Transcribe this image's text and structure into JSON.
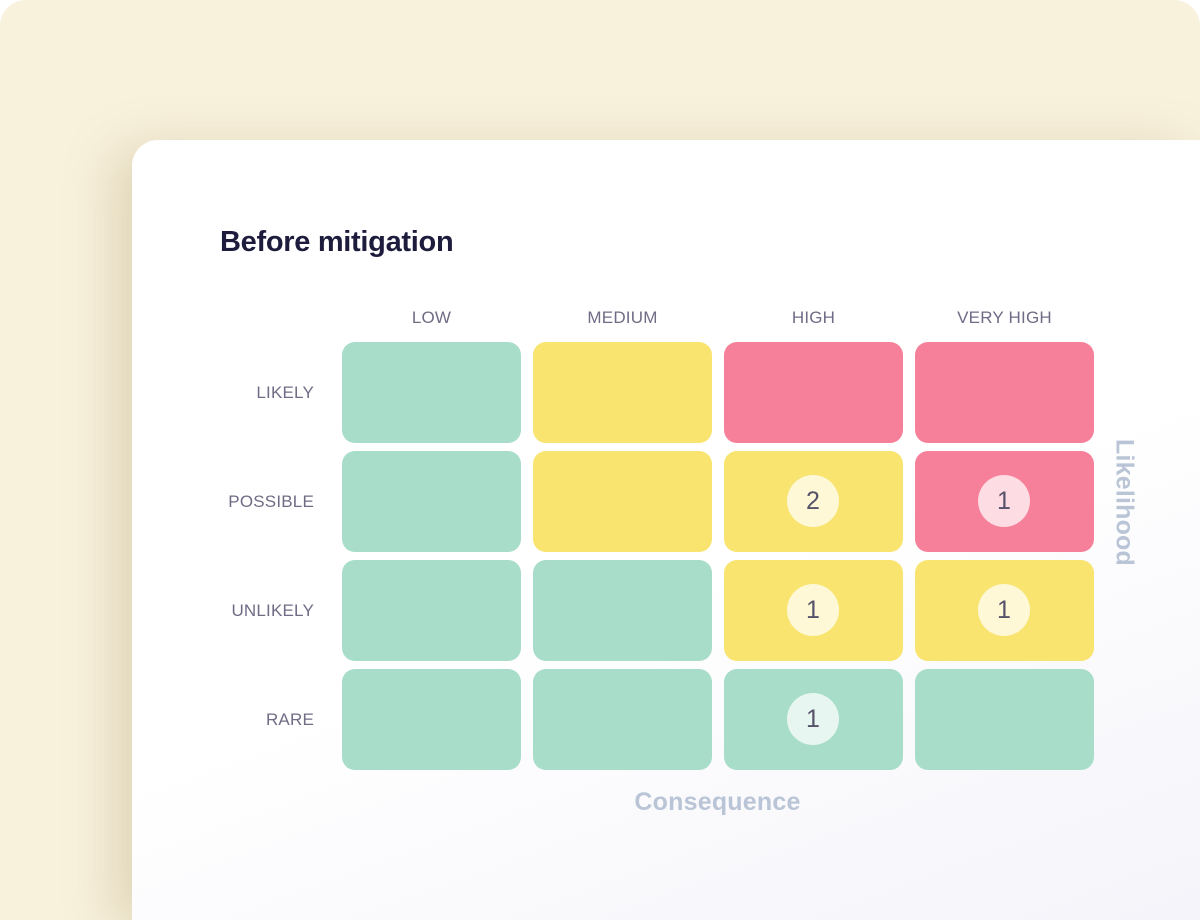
{
  "chart_data": {
    "type": "heatmap",
    "title": "Before mitigation",
    "xlabel": "Consequence",
    "ylabel": "Likelihood",
    "columns": [
      "LOW",
      "MEDIUM",
      "HIGH",
      "VERY HIGH"
    ],
    "rows": [
      "LIKELY",
      "POSSIBLE",
      "UNLIKELY",
      "RARE"
    ],
    "colors": {
      "green": "#a8ddc9",
      "yellow": "#f9e470",
      "red": "#f6809a"
    },
    "cells": [
      [
        {
          "color": "green",
          "count": null
        },
        {
          "color": "yellow",
          "count": null
        },
        {
          "color": "red",
          "count": null
        },
        {
          "color": "red",
          "count": null
        }
      ],
      [
        {
          "color": "green",
          "count": null
        },
        {
          "color": "yellow",
          "count": null
        },
        {
          "color": "yellow",
          "count": 2
        },
        {
          "color": "red",
          "count": 1
        }
      ],
      [
        {
          "color": "green",
          "count": null
        },
        {
          "color": "green",
          "count": null
        },
        {
          "color": "yellow",
          "count": 1
        },
        {
          "color": "yellow",
          "count": 1
        }
      ],
      [
        {
          "color": "green",
          "count": null
        },
        {
          "color": "green",
          "count": null
        },
        {
          "color": "green",
          "count": 1
        },
        {
          "color": "green",
          "count": null
        }
      ]
    ]
  }
}
